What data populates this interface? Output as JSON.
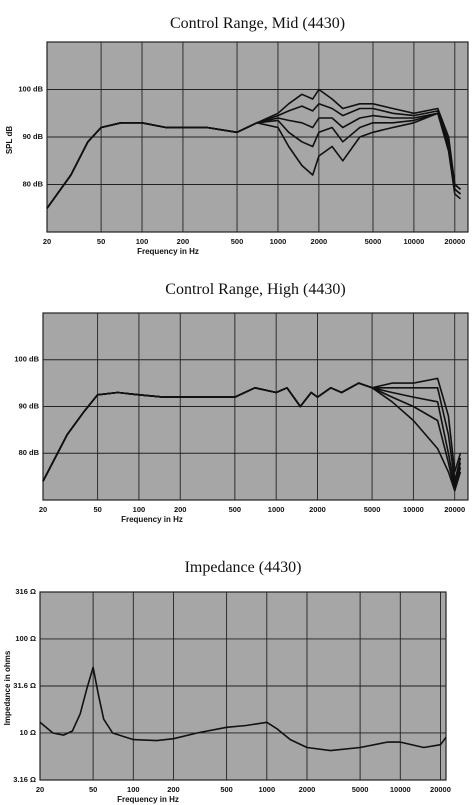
{
  "chart_data": [
    {
      "type": "line",
      "title": "Control Range, Mid (4430)",
      "x_label": "Frequency in Hz",
      "y_label": "SPL dB",
      "log_x": true,
      "log_y": false,
      "grid": true,
      "xlim": [
        20,
        25000
      ],
      "ylim": [
        70,
        110
      ],
      "xticks": [
        20,
        50,
        100,
        200,
        500,
        1000,
        2000,
        5000,
        10000,
        20000
      ],
      "yticks": [
        {
          "value": 80,
          "label": "80 dB"
        },
        {
          "value": 90,
          "label": "90 dB"
        },
        {
          "value": 100,
          "label": "100 dB"
        }
      ],
      "x": [
        20,
        30,
        40,
        50,
        70,
        100,
        150,
        200,
        300,
        500,
        700,
        1000,
        1200,
        1500,
        1800,
        2000,
        2500,
        3000,
        4000,
        5000,
        7000,
        10000,
        15000,
        18000,
        20000,
        22000
      ],
      "series": [
        {
          "color": "#111111",
          "values": [
            75,
            82,
            89,
            92,
            93,
            93,
            92,
            92,
            92,
            91,
            93,
            95,
            97,
            99,
            98,
            100,
            98,
            96,
            97,
            97,
            96,
            95,
            96,
            90,
            80,
            79
          ]
        },
        {
          "color": "#111111",
          "values": [
            75,
            82,
            89,
            92,
            93,
            93,
            92,
            92,
            92,
            91,
            93,
            94.5,
            95.5,
            96.5,
            95.5,
            97,
            96,
            94.5,
            96,
            96,
            95,
            94.5,
            95.5,
            89,
            80,
            79
          ]
        },
        {
          "color": "#111111",
          "values": [
            75,
            82,
            89,
            92,
            93,
            93,
            92,
            92,
            92,
            91,
            93,
            94,
            93.5,
            93,
            92,
            94,
            94,
            92,
            94,
            94.5,
            94,
            94,
            95,
            88,
            79,
            78
          ]
        },
        {
          "color": "#111111",
          "values": [
            75,
            82,
            89,
            92,
            93,
            93,
            92,
            92,
            92,
            91,
            93,
            93.5,
            91,
            89,
            88,
            91,
            92,
            89,
            92,
            93,
            93,
            93.5,
            95,
            88,
            79,
            78
          ]
        },
        {
          "color": "#111111",
          "values": [
            75,
            82,
            89,
            92,
            93,
            93,
            92,
            92,
            92,
            91,
            93,
            92,
            88,
            84,
            82,
            86,
            88,
            85,
            90,
            91,
            92,
            93,
            95,
            87,
            78,
            77
          ]
        }
      ]
    },
    {
      "type": "line",
      "title": "Control Range, High (4430)",
      "x_label": "Frequency in Hz",
      "y_label": null,
      "log_x": true,
      "log_y": false,
      "grid": true,
      "xlim": [
        20,
        25000
      ],
      "ylim": [
        70,
        110
      ],
      "xticks": [
        20,
        50,
        100,
        200,
        500,
        1000,
        2000,
        5000,
        10000,
        20000
      ],
      "yticks": [
        {
          "value": 80,
          "label": "80 dB"
        },
        {
          "value": 90,
          "label": "90 dB"
        },
        {
          "value": 100,
          "label": "100 dB"
        }
      ],
      "x": [
        20,
        30,
        40,
        50,
        70,
        100,
        150,
        200,
        300,
        500,
        700,
        1000,
        1200,
        1500,
        1800,
        2000,
        2500,
        3000,
        4000,
        5000,
        7000,
        10000,
        15000,
        18000,
        20000,
        22000
      ],
      "series": [
        {
          "color": "#111111",
          "values": [
            74,
            84,
            89,
            92.5,
            93,
            92.5,
            92,
            92,
            92,
            92,
            94,
            93,
            94,
            90,
            93,
            92,
            94,
            93,
            95,
            94,
            95,
            95,
            96,
            88,
            76,
            80
          ]
        },
        {
          "color": "#111111",
          "values": [
            74,
            84,
            89,
            92.5,
            93,
            92.5,
            92,
            92,
            92,
            92,
            94,
            93,
            94,
            90,
            93,
            92,
            94,
            93,
            95,
            94,
            94,
            94,
            94,
            84,
            74,
            79
          ]
        },
        {
          "color": "#111111",
          "values": [
            74,
            84,
            89,
            92.5,
            93,
            92.5,
            92,
            92,
            92,
            92,
            94,
            93,
            94,
            90,
            93,
            92,
            94,
            93,
            95,
            94,
            93,
            92,
            91,
            80,
            73,
            78
          ]
        },
        {
          "color": "#111111",
          "values": [
            74,
            84,
            89,
            92.5,
            93,
            92.5,
            92,
            92,
            92,
            92,
            94,
            93,
            94,
            90,
            93,
            92,
            94,
            93,
            95,
            94,
            92,
            90,
            87,
            78,
            72,
            77
          ]
        },
        {
          "color": "#111111",
          "values": [
            74,
            84,
            89,
            92.5,
            93,
            92.5,
            92,
            92,
            92,
            92,
            94,
            93,
            94,
            90,
            93,
            92,
            94,
            93,
            95,
            94,
            91,
            87,
            81,
            76,
            72,
            76
          ]
        }
      ]
    },
    {
      "type": "line",
      "title": "Impedance (4430)",
      "x_label": "Frequency in Hz",
      "y_label": "Impedance in ohms",
      "log_x": true,
      "log_y": true,
      "grid": true,
      "xlim": [
        20,
        22000
      ],
      "ylim": [
        3.16,
        316
      ],
      "xticks": [
        20,
        50,
        100,
        200,
        500,
        1000,
        2000,
        5000,
        10000,
        20000
      ],
      "yticks": [
        {
          "value": 3.16,
          "label": "3.16 Ω"
        },
        {
          "value": 10,
          "label": "10 Ω"
        },
        {
          "value": 31.6,
          "label": "31.6 Ω"
        },
        {
          "value": 100,
          "label": "100 Ω"
        },
        {
          "value": 316,
          "label": "316 Ω"
        }
      ],
      "x": [
        20,
        25,
        30,
        35,
        40,
        45,
        50,
        55,
        60,
        70,
        100,
        150,
        200,
        300,
        500,
        700,
        1000,
        1200,
        1500,
        2000,
        3000,
        5000,
        8000,
        10000,
        15000,
        20000,
        22000
      ],
      "series": [
        {
          "color": "#111111",
          "values": [
            13,
            10,
            9.5,
            10.5,
            16,
            30,
            50,
            25,
            14,
            10,
            8.5,
            8.3,
            8.7,
            10,
            11.5,
            12,
            13,
            11,
            8.5,
            7,
            6.5,
            7,
            8,
            8,
            7,
            7.5,
            9
          ]
        }
      ]
    }
  ]
}
